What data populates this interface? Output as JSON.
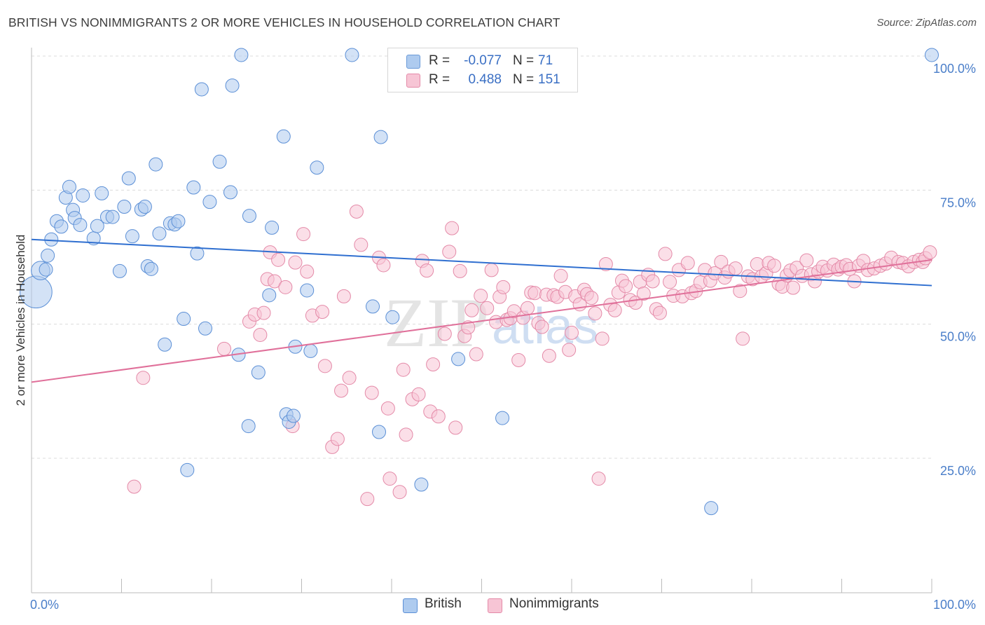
{
  "title": "BRITISH VS NONIMMIGRANTS 2 OR MORE VEHICLES IN HOUSEHOLD CORRELATION CHART",
  "source": "Source: ZipAtlas.com",
  "watermark": {
    "zip": "ZIP",
    "atlas": "atlas"
  },
  "legend": {
    "rows": [
      {
        "r_label": "R =",
        "r_value": "-0.077",
        "n_label": "N =",
        "n_value": "71",
        "fill": "#aecbef",
        "stroke": "#6a9ad8"
      },
      {
        "r_label": "R =",
        "r_value": "0.488",
        "n_label": "N = ",
        "n_value": "151",
        "fill": "#f7c5d5",
        "stroke": "#e48aa8"
      }
    ]
  },
  "bottom_legend": {
    "british": "British",
    "nonimmigrants": "Nonimmigrants"
  },
  "colors": {
    "british_fill": "#aecbef",
    "british_stroke": "#5b8fd6",
    "british_line": "#2f6fd0",
    "non_fill": "#f7c5d5",
    "non_stroke": "#e48aa8",
    "non_line": "#e0709a",
    "grid": "#dcdcdc",
    "tick_text": "#4a7ec9"
  },
  "chart_data": {
    "type": "scatter",
    "title": "BRITISH VS NONIMMIGRANTS 2 OR MORE VEHICLES IN HOUSEHOLD CORRELATION CHART",
    "xlabel": "",
    "ylabel": "2 or more Vehicles in Household",
    "xlim": [
      0,
      100
    ],
    "ylim": [
      0,
      105
    ],
    "x_tick_labels": [
      "0.0%",
      "100.0%"
    ],
    "y_ticks": [
      25,
      50,
      75,
      100
    ],
    "y_tick_labels": [
      "25.0%",
      "50.0%",
      "75.0%",
      "100.0%"
    ],
    "grid": true,
    "series": [
      {
        "name": "British",
        "r": -0.077,
        "n": 71,
        "trend": [
          [
            0,
            65.8
          ],
          [
            100,
            57.2
          ]
        ],
        "points": [
          [
            0.5,
            56.0,
            2.4
          ],
          [
            1.0,
            60.0,
            1.4
          ],
          [
            1.6,
            60.2,
            1.0
          ],
          [
            1.8,
            62.8,
            1.0
          ],
          [
            2.2,
            65.8,
            1.0
          ],
          [
            2.8,
            69.2,
            1.0
          ],
          [
            3.3,
            68.2,
            1.0
          ],
          [
            3.8,
            73.6,
            1.0
          ],
          [
            4.2,
            75.6,
            1.0
          ],
          [
            4.6,
            71.3,
            1.0
          ],
          [
            4.8,
            69.8,
            1.0
          ],
          [
            5.4,
            68.5,
            1.0
          ],
          [
            5.7,
            74.0,
            1.0
          ],
          [
            6.9,
            66.0,
            1.0
          ],
          [
            7.3,
            68.3,
            1.0
          ],
          [
            7.8,
            74.4,
            1.0
          ],
          [
            8.4,
            70.0,
            1.0
          ],
          [
            9.0,
            70.0,
            1.0
          ],
          [
            9.8,
            59.9,
            1.0
          ],
          [
            10.3,
            71.9,
            1.0
          ],
          [
            10.8,
            77.2,
            1.0
          ],
          [
            11.2,
            66.4,
            1.0
          ],
          [
            12.2,
            71.4,
            1.0
          ],
          [
            12.6,
            71.9,
            1.0
          ],
          [
            12.9,
            60.8,
            1.0
          ],
          [
            13.3,
            60.3,
            1.0
          ],
          [
            13.8,
            79.8,
            1.0
          ],
          [
            14.2,
            66.9,
            1.0
          ],
          [
            14.8,
            46.2,
            1.0
          ],
          [
            15.4,
            68.8,
            1.0
          ],
          [
            15.9,
            68.6,
            1.0
          ],
          [
            16.3,
            69.2,
            1.0
          ],
          [
            16.9,
            51.0,
            1.0
          ],
          [
            17.3,
            22.8,
            1.0
          ],
          [
            18.0,
            75.5,
            1.0
          ],
          [
            18.4,
            63.2,
            1.0
          ],
          [
            18.9,
            93.8,
            1.0
          ],
          [
            19.3,
            49.2,
            1.0
          ],
          [
            19.8,
            72.8,
            1.0
          ],
          [
            20.9,
            80.3,
            1.0
          ],
          [
            22.1,
            74.6,
            1.0
          ],
          [
            22.3,
            94.5,
            1.0
          ],
          [
            23.0,
            44.3,
            1.0
          ],
          [
            23.3,
            100.2,
            1.0
          ],
          [
            24.1,
            31.0,
            1.0
          ],
          [
            24.2,
            70.2,
            1.0
          ],
          [
            25.2,
            41.0,
            1.0
          ],
          [
            26.4,
            55.4,
            1.0
          ],
          [
            26.7,
            68.0,
            1.0
          ],
          [
            28.0,
            85.0,
            1.0
          ],
          [
            28.3,
            33.2,
            1.0
          ],
          [
            28.6,
            31.8,
            1.0
          ],
          [
            29.1,
            32.9,
            1.0
          ],
          [
            29.3,
            45.8,
            1.0
          ],
          [
            30.6,
            56.3,
            1.0
          ],
          [
            31.0,
            45.0,
            1.0
          ],
          [
            31.7,
            79.2,
            1.0
          ],
          [
            35.6,
            100.2,
            1.0
          ],
          [
            37.9,
            53.3,
            1.0
          ],
          [
            38.6,
            29.9,
            1.0
          ],
          [
            38.8,
            84.9,
            1.0
          ],
          [
            40.1,
            51.3,
            1.0
          ],
          [
            43.3,
            20.1,
            1.0
          ],
          [
            47.4,
            43.5,
            1.0
          ],
          [
            52.3,
            32.5,
            1.0
          ],
          [
            75.5,
            15.7,
            1.0
          ],
          [
            100.0,
            100.2,
            1.0
          ]
        ]
      },
      {
        "name": "Nonimmigrants",
        "r": 0.488,
        "n": 151,
        "trend": [
          [
            0,
            39.2
          ],
          [
            100,
            62.0
          ]
        ],
        "points": [
          [
            11.4,
            19.7,
            1.0
          ],
          [
            12.4,
            40.0,
            1.0
          ],
          [
            21.4,
            45.4,
            1.0
          ],
          [
            24.2,
            50.5,
            1.0
          ],
          [
            24.8,
            51.8,
            1.0
          ],
          [
            25.4,
            48.0,
            1.0
          ],
          [
            25.8,
            52.1,
            1.0
          ],
          [
            26.2,
            58.4,
            1.0
          ],
          [
            26.5,
            63.4,
            1.0
          ],
          [
            27.0,
            58.0,
            1.0
          ],
          [
            27.4,
            62.0,
            1.0
          ],
          [
            28.2,
            56.9,
            1.0
          ],
          [
            29.0,
            31.0,
            1.0
          ],
          [
            29.3,
            61.5,
            1.0
          ],
          [
            30.2,
            66.8,
            1.0
          ],
          [
            30.6,
            59.8,
            1.0
          ],
          [
            31.2,
            51.6,
            1.0
          ],
          [
            32.3,
            52.3,
            1.0
          ],
          [
            32.6,
            42.2,
            1.0
          ],
          [
            33.4,
            27.1,
            1.0
          ],
          [
            34.0,
            28.6,
            1.0
          ],
          [
            34.4,
            37.6,
            1.0
          ],
          [
            34.7,
            55.2,
            1.0
          ],
          [
            35.3,
            40.0,
            1.0
          ],
          [
            36.1,
            71.0,
            1.0
          ],
          [
            36.6,
            64.8,
            1.0
          ],
          [
            37.3,
            17.4,
            1.0
          ],
          [
            37.8,
            37.2,
            1.0
          ],
          [
            38.6,
            62.4,
            1.0
          ],
          [
            39.1,
            61.0,
            1.0
          ],
          [
            39.6,
            34.3,
            1.0
          ],
          [
            39.8,
            21.2,
            1.0
          ],
          [
            40.9,
            18.7,
            1.0
          ],
          [
            41.3,
            41.5,
            1.0
          ],
          [
            41.6,
            29.4,
            1.0
          ],
          [
            42.3,
            36.0,
            1.0
          ],
          [
            43.0,
            36.9,
            1.0
          ],
          [
            43.4,
            61.8,
            1.0
          ],
          [
            43.9,
            60.0,
            1.0
          ],
          [
            44.3,
            33.7,
            1.0
          ],
          [
            44.6,
            42.5,
            1.0
          ],
          [
            45.2,
            32.8,
            1.0
          ],
          [
            45.9,
            48.2,
            1.0
          ],
          [
            46.4,
            63.5,
            1.0
          ],
          [
            46.7,
            67.9,
            1.0
          ],
          [
            47.1,
            30.7,
            1.0
          ],
          [
            47.6,
            59.9,
            1.0
          ],
          [
            48.1,
            47.8,
            1.0
          ],
          [
            48.5,
            49.4,
            1.0
          ],
          [
            48.9,
            52.6,
            1.0
          ],
          [
            49.4,
            44.4,
            1.0
          ],
          [
            49.9,
            55.3,
            1.0
          ],
          [
            50.6,
            53.0,
            1.0
          ],
          [
            51.1,
            60.1,
            1.0
          ],
          [
            51.6,
            50.4,
            1.0
          ],
          [
            52.0,
            55.1,
            1.0
          ],
          [
            52.4,
            56.9,
            1.0
          ],
          [
            52.8,
            50.8,
            1.0
          ],
          [
            53.2,
            51.1,
            1.0
          ],
          [
            53.6,
            52.4,
            1.0
          ],
          [
            54.1,
            43.3,
            1.0
          ],
          [
            54.6,
            51.2,
            1.0
          ],
          [
            55.1,
            53.0,
            1.0
          ],
          [
            55.5,
            55.9,
            1.0
          ],
          [
            55.9,
            55.8,
            1.0
          ],
          [
            56.3,
            50.2,
            1.0
          ],
          [
            56.7,
            49.5,
            1.0
          ],
          [
            57.2,
            55.5,
            1.0
          ],
          [
            57.5,
            44.1,
            1.0
          ],
          [
            58.0,
            55.4,
            1.0
          ],
          [
            58.4,
            55.1,
            1.0
          ],
          [
            58.8,
            59.0,
            1.0
          ],
          [
            59.3,
            56.0,
            1.0
          ],
          [
            59.7,
            45.2,
            1.0
          ],
          [
            60.0,
            48.4,
            1.0
          ],
          [
            60.4,
            55.2,
            1.0
          ],
          [
            60.9,
            53.7,
            1.0
          ],
          [
            61.4,
            56.4,
            1.0
          ],
          [
            61.7,
            55.6,
            1.0
          ],
          [
            62.2,
            54.9,
            1.0
          ],
          [
            62.6,
            52.0,
            1.0
          ],
          [
            63.0,
            21.2,
            1.0
          ],
          [
            63.4,
            47.3,
            1.0
          ],
          [
            63.8,
            61.2,
            1.0
          ],
          [
            64.3,
            53.6,
            1.0
          ],
          [
            64.8,
            52.6,
            1.0
          ],
          [
            65.2,
            55.9,
            1.0
          ],
          [
            65.6,
            58.1,
            1.0
          ],
          [
            66.0,
            57.1,
            1.0
          ],
          [
            66.5,
            54.5,
            1.0
          ],
          [
            67.1,
            54.0,
            1.0
          ],
          [
            67.6,
            57.9,
            1.0
          ],
          [
            68.0,
            55.7,
            1.0
          ],
          [
            68.5,
            59.2,
            1.0
          ],
          [
            69.0,
            58.0,
            1.0
          ],
          [
            69.4,
            52.8,
            1.0
          ],
          [
            69.8,
            52.1,
            1.0
          ],
          [
            70.4,
            63.1,
            1.0
          ],
          [
            70.9,
            57.9,
            1.0
          ],
          [
            71.3,
            55.3,
            1.0
          ],
          [
            71.9,
            60.1,
            1.0
          ],
          [
            72.3,
            55.2,
            1.0
          ],
          [
            72.9,
            61.4,
            1.0
          ],
          [
            73.3,
            55.8,
            1.0
          ],
          [
            73.8,
            56.2,
            1.0
          ],
          [
            74.3,
            57.8,
            1.0
          ],
          [
            74.8,
            60.1,
            1.0
          ],
          [
            75.4,
            58.1,
            1.0
          ],
          [
            75.9,
            59.5,
            1.0
          ],
          [
            76.6,
            61.6,
            1.0
          ],
          [
            77.0,
            58.7,
            1.0
          ],
          [
            77.4,
            59.8,
            1.0
          ],
          [
            78.2,
            60.4,
            1.0
          ],
          [
            78.7,
            56.2,
            1.0
          ],
          [
            79.0,
            47.3,
            1.0
          ],
          [
            79.6,
            58.9,
            1.0
          ],
          [
            80.1,
            58.4,
            1.0
          ],
          [
            80.6,
            61.2,
            1.0
          ],
          [
            81.1,
            58.9,
            1.0
          ],
          [
            81.6,
            59.5,
            1.0
          ],
          [
            81.9,
            61.4,
            1.0
          ],
          [
            82.5,
            60.9,
            1.0
          ],
          [
            83.0,
            57.5,
            1.0
          ],
          [
            83.4,
            57.0,
            1.0
          ],
          [
            83.9,
            59.1,
            1.0
          ],
          [
            84.3,
            60.0,
            1.0
          ],
          [
            84.6,
            56.8,
            1.0
          ],
          [
            85.0,
            60.5,
            1.0
          ],
          [
            85.6,
            59.0,
            1.0
          ],
          [
            86.1,
            61.9,
            1.0
          ],
          [
            86.6,
            59.3,
            1.0
          ],
          [
            87.0,
            58.0,
            1.0
          ],
          [
            87.4,
            59.8,
            1.0
          ],
          [
            87.9,
            60.7,
            1.0
          ],
          [
            88.4,
            60.0,
            1.0
          ],
          [
            89.1,
            61.1,
            1.0
          ],
          [
            89.6,
            60.2,
            1.0
          ],
          [
            90.0,
            60.7,
            1.0
          ],
          [
            90.5,
            61.0,
            1.0
          ],
          [
            90.9,
            60.3,
            1.0
          ],
          [
            91.4,
            58.0,
            1.0
          ],
          [
            91.9,
            60.9,
            1.0
          ],
          [
            92.4,
            61.8,
            1.0
          ],
          [
            92.9,
            60.1,
            1.0
          ],
          [
            93.6,
            60.4,
            1.0
          ],
          [
            94.3,
            60.9,
            1.0
          ],
          [
            94.9,
            61.3,
            1.0
          ],
          [
            95.5,
            62.4,
            1.0
          ],
          [
            96.3,
            61.6,
            1.0
          ],
          [
            96.8,
            61.4,
            1.0
          ],
          [
            97.4,
            60.8,
            1.0
          ],
          [
            98.0,
            61.6,
            1.0
          ],
          [
            98.6,
            62.0,
            1.0
          ],
          [
            99.0,
            61.6,
            1.0
          ],
          [
            99.3,
            62.3,
            1.0
          ],
          [
            99.8,
            63.4,
            1.0
          ]
        ]
      }
    ]
  }
}
